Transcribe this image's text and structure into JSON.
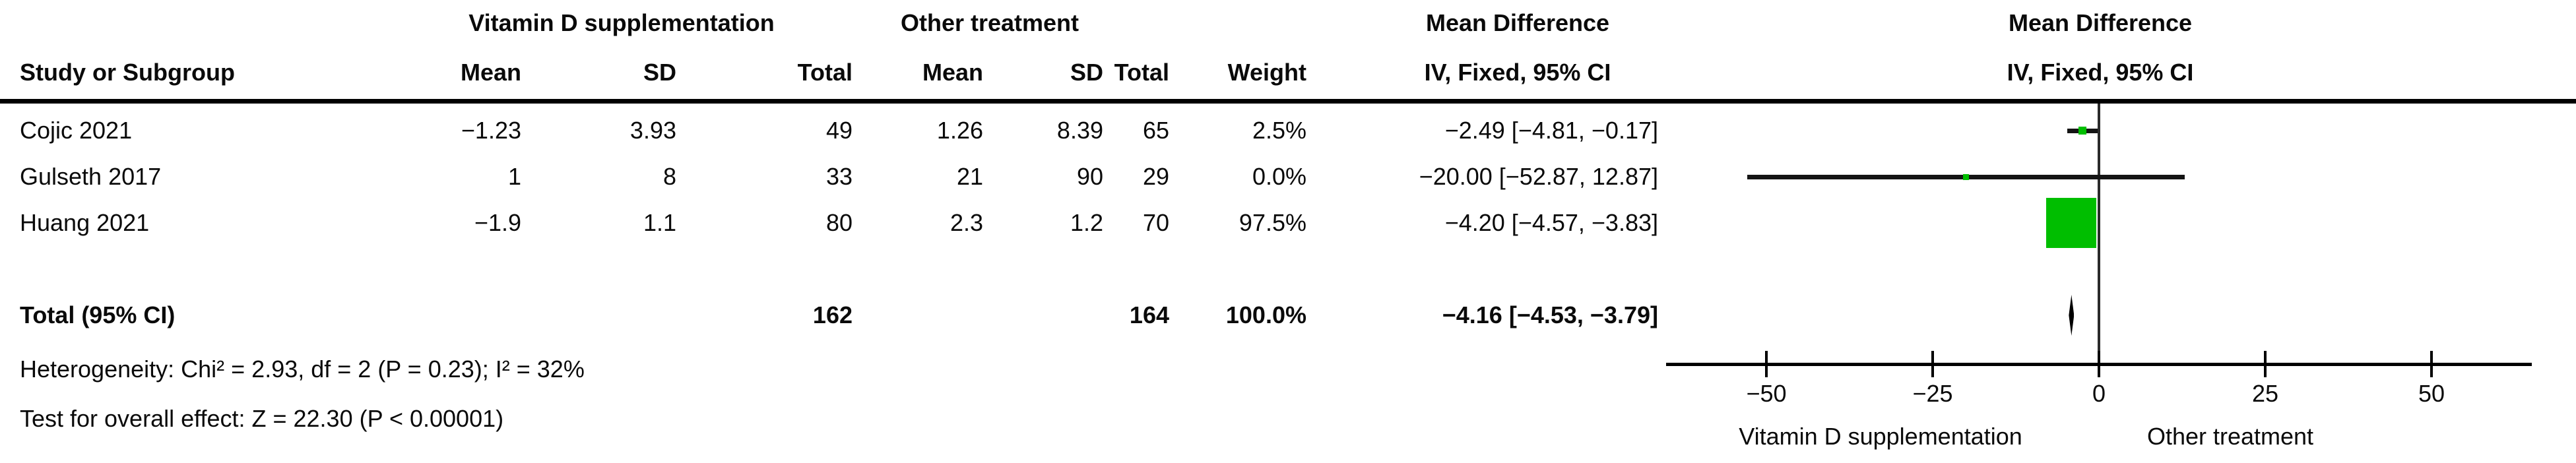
{
  "headers": {
    "group1": "Vitamin D supplementation",
    "group2": "Other treatment",
    "md": "Mean Difference",
    "iv": "IV, Fixed, 95% CI",
    "study": "Study or Subgroup",
    "mean": "Mean",
    "sd": "SD",
    "total": "Total",
    "weight": "Weight"
  },
  "rows": [
    {
      "study": "Cojic 2021",
      "mean1": "−1.23",
      "sd1": "3.93",
      "total1": "49",
      "mean2": "1.26",
      "sd2": "8.39",
      "total2": "65",
      "weight": "2.5%",
      "md": "−2.49 [−4.81, −0.17]"
    },
    {
      "study": "Gulseth 2017",
      "mean1": "1",
      "sd1": "8",
      "total1": "33",
      "mean2": "21",
      "sd2": "90",
      "total2": "29",
      "weight": "0.0%",
      "md": "−20.00 [−52.87, 12.87]"
    },
    {
      "study": "Huang 2021",
      "mean1": "−1.9",
      "sd1": "1.1",
      "total1": "80",
      "mean2": "2.3",
      "sd2": "1.2",
      "total2": "70",
      "weight": "97.5%",
      "md": "−4.20 [−4.57, −3.83]"
    }
  ],
  "total": {
    "label": "Total (95% CI)",
    "total1": "162",
    "total2": "164",
    "weight": "100.0%",
    "md": "−4.16 [−4.53, −3.79]"
  },
  "footer": {
    "het": "Heterogeneity: Chi² = 2.93, df = 2 (P = 0.23); I² = 32%",
    "overall": "Test for overall effect: Z = 22.30 (P < 0.00001)"
  },
  "axis": {
    "ticks": [
      {
        "v": -50,
        "label": "−50"
      },
      {
        "v": -25,
        "label": "−25"
      },
      {
        "v": 0,
        "label": "0"
      },
      {
        "v": 25,
        "label": "25"
      },
      {
        "v": 50,
        "label": "50"
      }
    ],
    "left_label": "Vitamin D supplementation",
    "right_label": "Other treatment"
  },
  "chart_data": {
    "type": "forest",
    "effect_measure": "Mean Difference",
    "model": "IV, Fixed, 95% CI",
    "x_ticks": [
      -50,
      -25,
      0,
      25,
      50
    ],
    "x_range": [
      -65,
      65
    ],
    "studies": [
      {
        "name": "Cojic 2021",
        "estimate": -2.49,
        "ci_low": -4.81,
        "ci_high": -0.17,
        "weight_pct": 2.5
      },
      {
        "name": "Gulseth 2017",
        "estimate": -20.0,
        "ci_low": -52.87,
        "ci_high": 12.87,
        "weight_pct": 0.0
      },
      {
        "name": "Huang 2021",
        "estimate": -4.2,
        "ci_low": -4.57,
        "ci_high": -3.83,
        "weight_pct": 97.5
      }
    ],
    "total": {
      "name": "Total (95% CI)",
      "estimate": -4.16,
      "ci_low": -4.53,
      "ci_high": -3.79,
      "weight_pct": 100.0
    },
    "marker_color": "#00be00",
    "line_color": "#141414",
    "favours_left": "Vitamin D supplementation",
    "favours_right": "Other treatment"
  }
}
